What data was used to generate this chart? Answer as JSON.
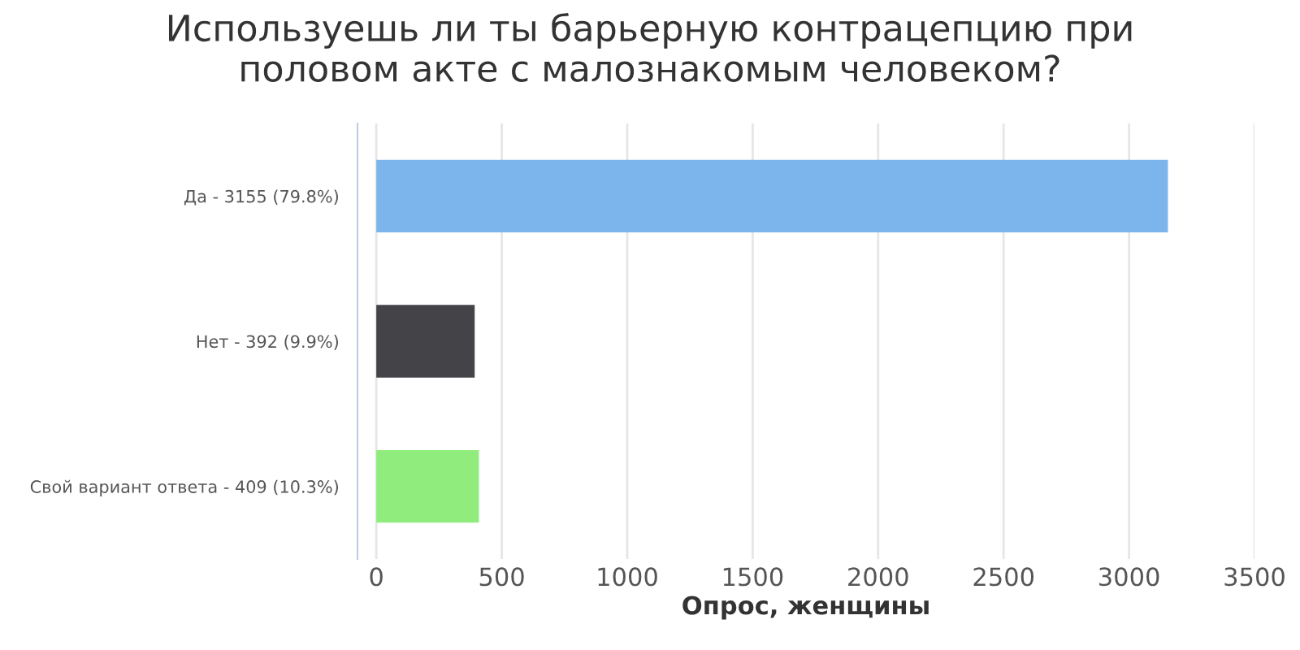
{
  "chart_data": {
    "type": "bar",
    "orientation": "horizontal",
    "title": "Используешь ли ты барьерную контрацепцию при\nполовом акте с малознакомым человеком?",
    "xlabel": "Опрос, женщины",
    "categories": [
      "Да - 3155 (79.8%)",
      "Нет - 392 (9.9%)",
      "Свой вариант ответа - 409 (10.3%)"
    ],
    "values": [
      3155,
      392,
      409
    ],
    "colors": [
      "#7cb5ec",
      "#434348",
      "#90ed7d"
    ],
    "xlim": [
      -75,
      3500
    ],
    "xticks": [
      0,
      500,
      1000,
      1500,
      2000,
      2500,
      3000,
      3500
    ],
    "grid": "x",
    "legend": false
  }
}
